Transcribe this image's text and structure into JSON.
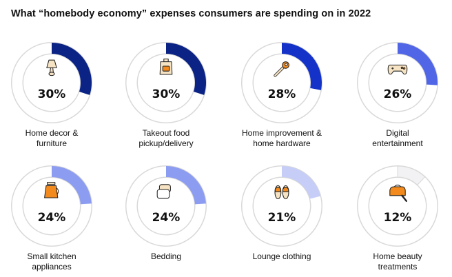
{
  "colors": {
    "ring_bg": "#ffffff",
    "ring_stroke": "#d9d9d9",
    "icon_fill": "#f28a1e",
    "icon_cream": "#f6e3c3",
    "icon_outline": "#222222"
  },
  "chart_data": {
    "type": "donut",
    "title": "What “homebody economy” expenses consumers are spending on in 2022",
    "unit": "%",
    "items": [
      {
        "label_lines": [
          "Home decor &",
          "furniture"
        ],
        "value": 30,
        "display": "30%",
        "color": "#0b2384",
        "icon": "table-lamp-icon"
      },
      {
        "label_lines": [
          "Takeout food",
          "pickup/delivery"
        ],
        "value": 30,
        "display": "30%",
        "color": "#0b2384",
        "icon": "takeout-bag-icon"
      },
      {
        "label_lines": [
          "Home improvement &",
          "home hardware"
        ],
        "value": 28,
        "display": "28%",
        "color": "#1432c8",
        "icon": "wrench-icon"
      },
      {
        "label_lines": [
          "Digital",
          "entertainment"
        ],
        "value": 26,
        "display": "26%",
        "color": "#5066e6",
        "icon": "game-controller-icon"
      },
      {
        "label_lines": [
          "Small kitchen",
          "appliances"
        ],
        "value": 24,
        "display": "24%",
        "color": "#8c9cf0",
        "icon": "coffee-maker-icon"
      },
      {
        "label_lines": [
          "Bedding"
        ],
        "value": 24,
        "display": "24%",
        "color": "#8c9cf0",
        "icon": "pillows-icon"
      },
      {
        "label_lines": [
          "Lounge clothing"
        ],
        "value": 21,
        "display": "21%",
        "color": "#c6cdf7",
        "icon": "slippers-icon"
      },
      {
        "label_lines": [
          "Home beauty",
          "treatments"
        ],
        "value": 12,
        "display": "12%",
        "color": "#f2f2f4",
        "icon": "hair-dryer-icon"
      }
    ]
  }
}
